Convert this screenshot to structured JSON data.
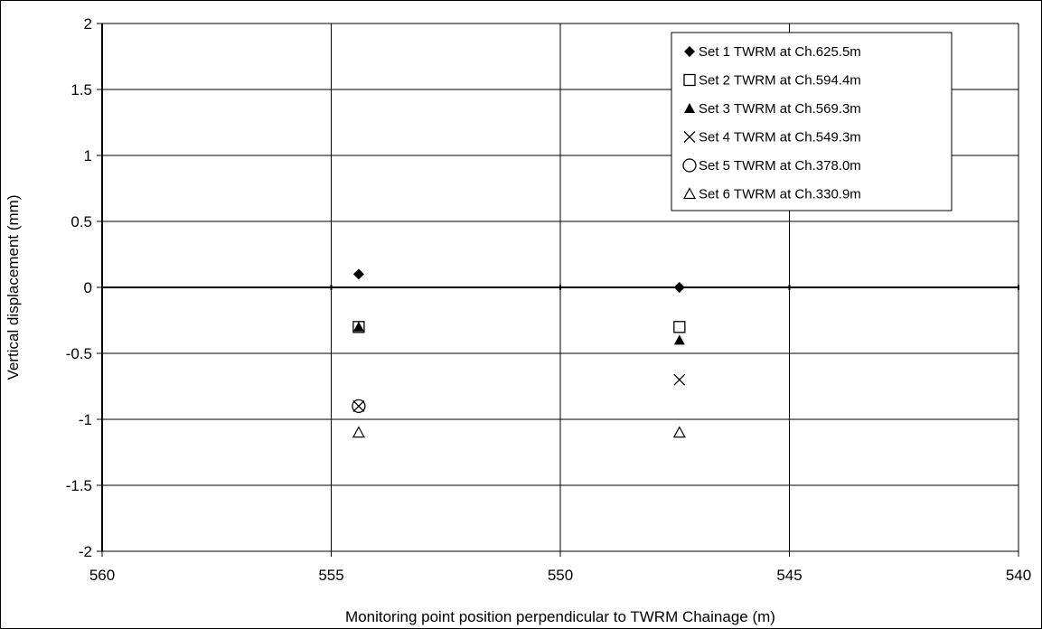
{
  "chart_data": {
    "type": "scatter",
    "title": "",
    "xlabel": "Monitoring point position perpendicular to TWRM Chainage (m)",
    "ylabel": "Vertical displacement (mm)",
    "xlim": [
      560,
      540
    ],
    "ylim": [
      -2,
      2
    ],
    "x_reversed": true,
    "x_ticks": [
      560,
      555,
      550,
      545,
      540
    ],
    "y_ticks": [
      2,
      1.5,
      1,
      0.5,
      0,
      -0.5,
      -1,
      -1.5,
      -2
    ],
    "x_tick_labels": [
      "560",
      "555",
      "550",
      "545",
      "540"
    ],
    "y_tick_labels": [
      "2",
      "1.5",
      "1",
      "0.5",
      "0",
      "-0.5",
      "-1",
      "-1.5",
      "-2"
    ],
    "grid": true,
    "legend_position": "top-right",
    "series": [
      {
        "name": "Set 1 TWRM at Ch.625.5m",
        "marker": "diamond-filled",
        "points": [
          {
            "x": 554.4,
            "y": 0.1
          },
          {
            "x": 547.4,
            "y": 0.0
          }
        ]
      },
      {
        "name": "Set 2 TWRM at Ch.594.4m",
        "marker": "square-open",
        "points": [
          {
            "x": 554.4,
            "y": -0.3
          },
          {
            "x": 547.4,
            "y": -0.3
          }
        ]
      },
      {
        "name": "Set 3 TWRM at Ch.569.3m",
        "marker": "triangle-filled",
        "points": [
          {
            "x": 554.4,
            "y": -0.3
          },
          {
            "x": 547.4,
            "y": -0.4
          }
        ]
      },
      {
        "name": "Set 4 TWRM at Ch.549.3m",
        "marker": "x",
        "points": [
          {
            "x": 554.4,
            "y": -0.9
          },
          {
            "x": 547.4,
            "y": -0.7
          }
        ]
      },
      {
        "name": "Set 5 TWRM at Ch.378.0m",
        "marker": "circle-open",
        "points": [
          {
            "x": 554.4,
            "y": -0.9
          }
        ]
      },
      {
        "name": "Set 6 TWRM at Ch.330.9m",
        "marker": "triangle-open",
        "points": [
          {
            "x": 554.4,
            "y": -1.1
          },
          {
            "x": 547.4,
            "y": -1.1
          }
        ]
      }
    ]
  }
}
